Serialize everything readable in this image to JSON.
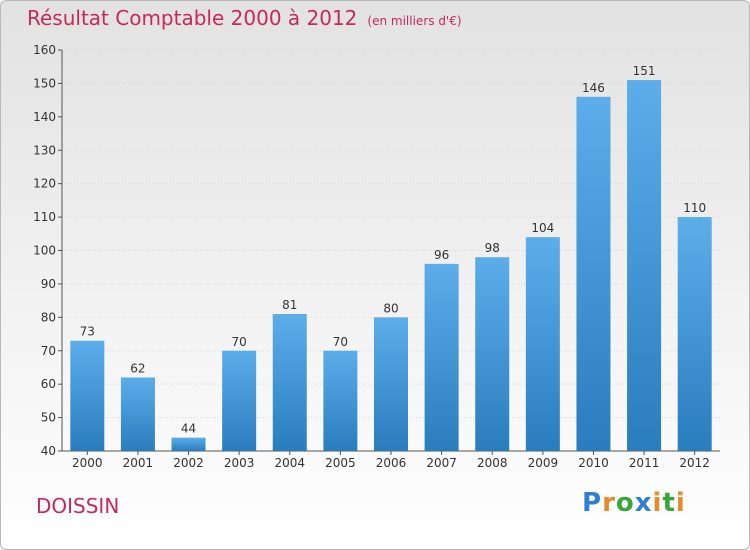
{
  "header": {
    "title": "Résultat Comptable 2000 à 2012",
    "subtitle": "(en milliers d'€)"
  },
  "footer": {
    "commune": "DOISSIN",
    "logo_text": "Proxiti",
    "logo_letters": [
      {
        "ch": "P",
        "color": "#2f7fd1"
      },
      {
        "ch": "r",
        "color": "#e8892b"
      },
      {
        "ch": "o",
        "color": "#3aa63a"
      },
      {
        "ch": "x",
        "color": "#2f7fd1"
      },
      {
        "ch": "i",
        "color": "#e8892b"
      },
      {
        "ch": "t",
        "color": "#3aa63a"
      },
      {
        "ch": "i",
        "color": "#e8892b"
      }
    ]
  },
  "colors": {
    "title": "#c8285a",
    "bar_top": "#5cadea",
    "bar_bottom": "#2a7dbd"
  },
  "chart_data": {
    "type": "bar",
    "title": "Résultat Comptable 2000 à 2012",
    "subtitle": "(en milliers d'€)",
    "categories": [
      "2000",
      "2001",
      "2002",
      "2003",
      "2004",
      "2005",
      "2006",
      "2007",
      "2008",
      "2009",
      "2010",
      "2011",
      "2012"
    ],
    "values": [
      73,
      62,
      44,
      70,
      81,
      70,
      80,
      96,
      98,
      104,
      146,
      151,
      110
    ],
    "ylim": [
      40,
      160
    ],
    "yticks": [
      40,
      50,
      60,
      70,
      80,
      90,
      100,
      110,
      120,
      130,
      140,
      150,
      160
    ],
    "grid": true,
    "xlabel": "",
    "ylabel": ""
  }
}
